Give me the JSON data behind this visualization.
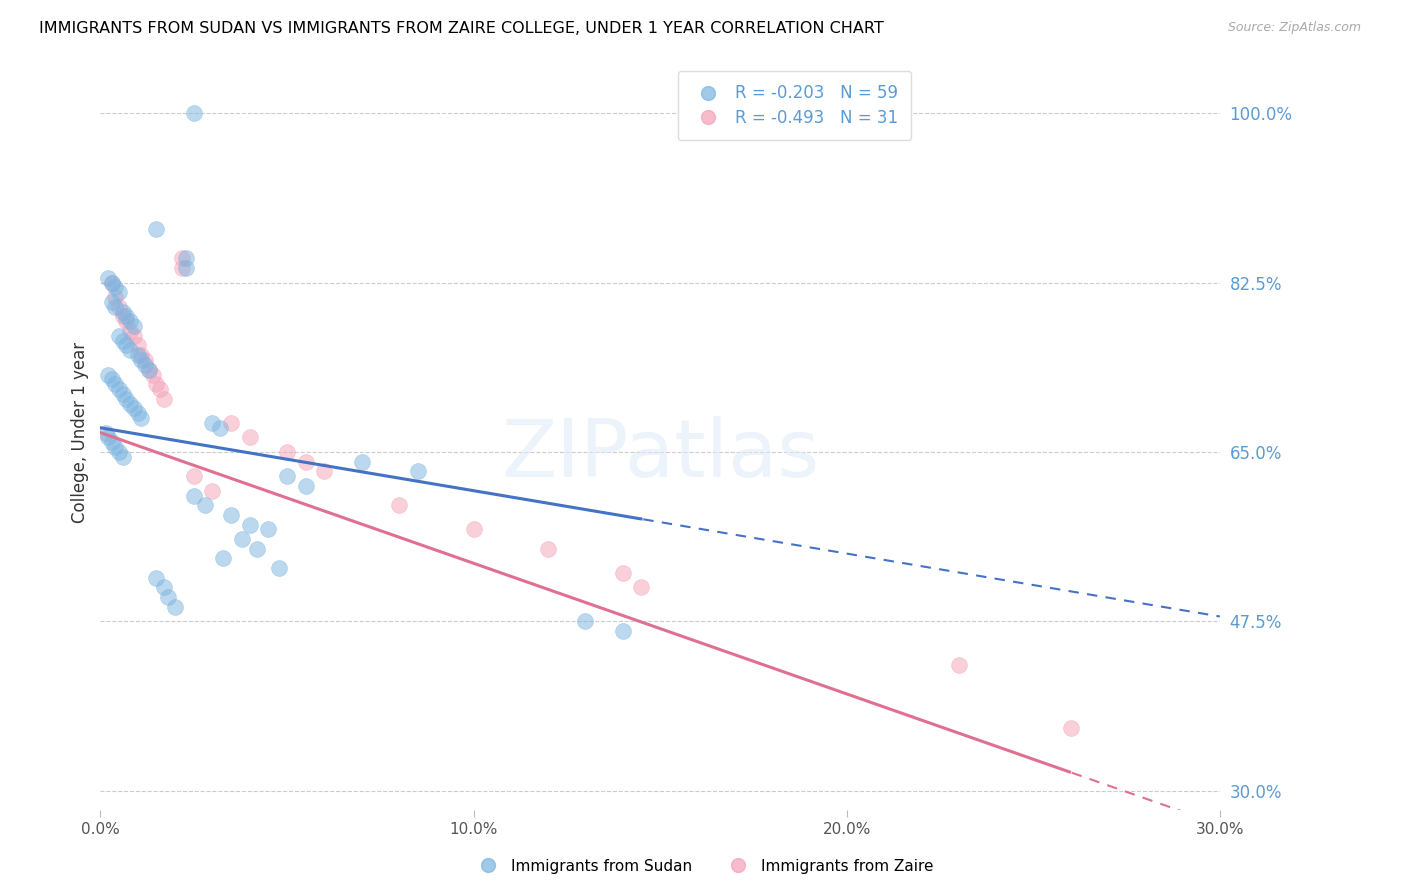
{
  "title": "IMMIGRANTS FROM SUDAN VS IMMIGRANTS FROM ZAIRE COLLEGE, UNDER 1 YEAR CORRELATION CHART",
  "source": "Source: ZipAtlas.com",
  "ylabel": "College, Under 1 year",
  "y_tick_vals": [
    100.0,
    82.5,
    65.0,
    47.5,
    30.0
  ],
  "y_tick_labels": [
    "100.0%",
    "82.5%",
    "65.0%",
    "47.5%",
    "30.0%"
  ],
  "x_tick_vals": [
    0,
    10,
    20,
    30
  ],
  "x_tick_labels": [
    "0.0%",
    "10.0%",
    "20.0%",
    "30.0%"
  ],
  "xlim": [
    0,
    30
  ],
  "ylim": [
    28,
    106
  ],
  "sudan_color": "#7ab3e0",
  "zaire_color": "#f4a0b5",
  "sudan_line_color": "#4472c4",
  "zaire_line_color": "#e07090",
  "legend_sudan_R": "-0.203",
  "legend_sudan_N": "59",
  "legend_zaire_R": "-0.493",
  "legend_zaire_N": "31",
  "legend_label_sudan": "Immigrants from Sudan",
  "legend_label_zaire": "Immigrants from Zaire",
  "watermark": "ZIPatlas",
  "sudan_intercept": 67.5,
  "sudan_slope": -0.65,
  "sudan_solid_max": 14.5,
  "zaire_intercept": 67.0,
  "zaire_slope": -1.35,
  "zaire_solid_max": 26.0,
  "sudan_scatter_x": [
    2.5,
    1.5,
    2.3,
    2.3,
    0.2,
    0.3,
    0.4,
    0.5,
    0.3,
    0.4,
    0.6,
    0.7,
    0.8,
    0.9,
    0.5,
    0.6,
    0.7,
    0.8,
    1.0,
    1.1,
    1.2,
    1.3,
    0.2,
    0.3,
    0.4,
    0.5,
    0.6,
    0.7,
    0.8,
    0.9,
    1.0,
    1.1,
    3.0,
    3.2,
    0.15,
    0.2,
    0.3,
    0.4,
    0.5,
    0.6,
    7.0,
    8.5,
    5.0,
    5.5,
    2.5,
    2.8,
    3.5,
    4.0,
    4.5,
    3.8,
    4.2,
    3.3,
    4.8,
    1.5,
    1.7,
    1.8,
    2.0,
    13.0,
    14.0
  ],
  "sudan_scatter_y": [
    100.0,
    88.0,
    85.0,
    84.0,
    83.0,
    82.5,
    82.0,
    81.5,
    80.5,
    80.0,
    79.5,
    79.0,
    78.5,
    78.0,
    77.0,
    76.5,
    76.0,
    75.5,
    75.0,
    74.5,
    74.0,
    73.5,
    73.0,
    72.5,
    72.0,
    71.5,
    71.0,
    70.5,
    70.0,
    69.5,
    69.0,
    68.5,
    68.0,
    67.5,
    67.0,
    66.5,
    66.0,
    65.5,
    65.0,
    64.5,
    64.0,
    63.0,
    62.5,
    61.5,
    60.5,
    59.5,
    58.5,
    57.5,
    57.0,
    56.0,
    55.0,
    54.0,
    53.0,
    52.0,
    51.0,
    50.0,
    49.0,
    47.5,
    46.5
  ],
  "zaire_scatter_x": [
    2.2,
    2.2,
    0.3,
    0.4,
    0.5,
    0.6,
    0.7,
    0.8,
    0.9,
    1.0,
    1.1,
    1.2,
    1.3,
    1.4,
    1.5,
    1.6,
    1.7,
    3.5,
    4.0,
    5.0,
    5.5,
    6.0,
    2.5,
    3.0,
    8.0,
    10.0,
    12.0,
    14.0,
    14.5,
    23.0,
    26.0
  ],
  "zaire_scatter_y": [
    85.0,
    84.0,
    82.5,
    81.0,
    80.0,
    79.0,
    78.5,
    77.5,
    77.0,
    76.0,
    75.0,
    74.5,
    73.5,
    73.0,
    72.0,
    71.5,
    70.5,
    68.0,
    66.5,
    65.0,
    64.0,
    63.0,
    62.5,
    61.0,
    59.5,
    57.0,
    55.0,
    52.5,
    51.0,
    43.0,
    36.5
  ]
}
